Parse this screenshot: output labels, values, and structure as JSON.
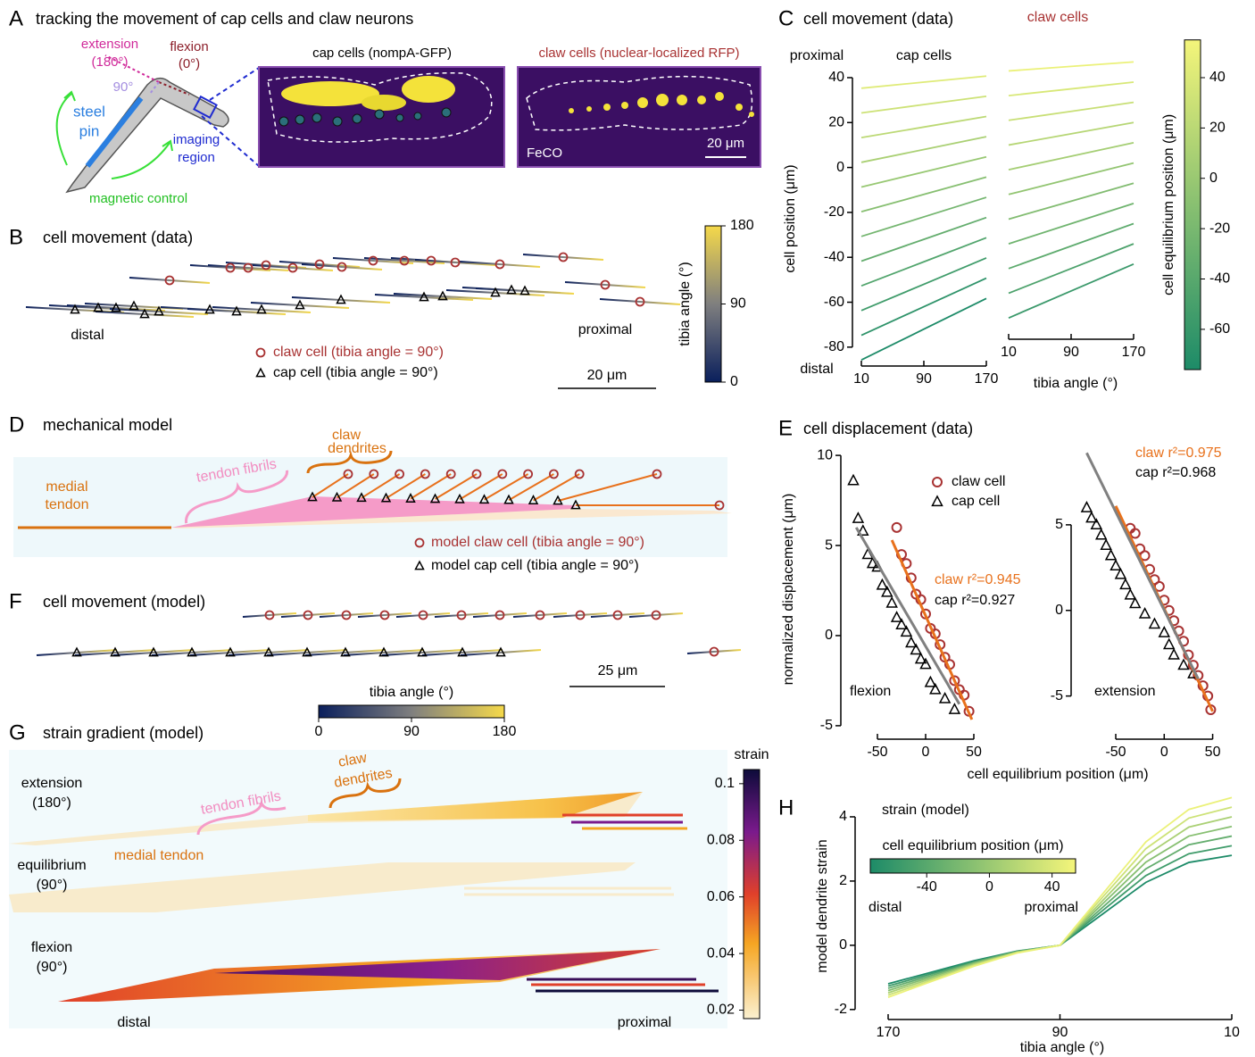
{
  "panels": {
    "A": {
      "letter": "A",
      "title": "tracking the movement of cap cells and claw neurons",
      "extension": "extension",
      "extension_angle": "(180°)",
      "flexion": "flexion",
      "flexion_angle": "(0°)",
      "right_angle": "90°",
      "steel": "steel",
      "pin": "pin",
      "imaging": "imaging",
      "region": "region",
      "magnetic_control": "magnetic control",
      "cap_image": "cap cells (nompA-GFP)",
      "claw_image": "claw cells (nuclear-localized RFP)",
      "feco": "FeCO",
      "scale": "20 μm"
    },
    "B": {
      "letter": "B",
      "title": "cell movement (data)",
      "distal": "distal",
      "proximal": "proximal",
      "claw_legend": "claw cell (tibia angle = 90°)",
      "cap_legend": "cap cell (tibia angle = 90°)",
      "scale": "20 μm",
      "colorbar": {
        "label": "tibia angle (°)",
        "range": [
          0,
          180
        ],
        "ticks": [
          0,
          90,
          180
        ]
      }
    },
    "C": {
      "letter": "C",
      "title": "cell movement (data)",
      "colorbar": {
        "label": "cell equilibrium position (μm)",
        "range": [
          -76,
          55
        ],
        "ticks": [
          -60,
          -40,
          -20,
          0,
          20,
          40
        ]
      }
    },
    "D": {
      "letter": "D",
      "title": "mechanical model",
      "medial": "medial",
      "tendon": "tendon",
      "fibrils": "tendon fibrils",
      "claw": "claw",
      "dendrites": "dendrites",
      "claw_legend": "model claw cell (tibia angle = 90°)",
      "cap_legend": "model cap cell (tibia angle = 90°)"
    },
    "E": {
      "letter": "E",
      "title": "cell displacement (data)",
      "xlabel": "cell equilibrium position (μm)"
    },
    "F": {
      "letter": "F",
      "title": "cell movement (model)",
      "scale": "25 μm",
      "colorbar": {
        "label": "tibia angle (°)",
        "range": [
          0,
          180
        ],
        "ticks": [
          0,
          90,
          180
        ]
      }
    },
    "G": {
      "letter": "G",
      "title": "strain gradient (model)",
      "extension": "extension",
      "extension_angle": "(180°)",
      "equilibrium": "equilibrium",
      "equilibrium_angle": "(90°)",
      "flexion": "flexion",
      "flexion_angle": "(90°)",
      "fibrils": "tendon fibrils",
      "claw": "claw",
      "dendrites": "dendrites",
      "medial_tendon": "medial tendon",
      "distal": "distal",
      "proximal": "proximal",
      "colorbar": {
        "label": "strain",
        "range": [
          0.017,
          0.105
        ],
        "ticks": [
          0.02,
          0.04,
          0.06,
          0.08,
          0.1
        ]
      }
    },
    "H": {
      "letter": "H"
    }
  },
  "chart_data": [
    {
      "type": "line",
      "subtitle": "cap cells",
      "ylabel": "cell position (μm)",
      "annotations": [
        "proximal",
        "distal"
      ],
      "x": [
        10,
        90,
        170
      ],
      "xlim": [
        10,
        170
      ],
      "xticks": [
        10,
        90,
        170
      ],
      "ylim": [
        -90,
        45
      ],
      "yticks": [
        -80,
        -60,
        -40,
        -20,
        0,
        20,
        40
      ],
      "series": [
        {
          "color": "#dfeb78",
          "values": [
            35.3,
            38,
            40.7
          ]
        },
        {
          "color": "#cde277",
          "values": [
            24.3,
            28,
            31.7
          ]
        },
        {
          "color": "#bcd975",
          "values": [
            13.3,
            18,
            22.7
          ]
        },
        {
          "color": "#aad074",
          "values": [
            2.3,
            8,
            13.7
          ]
        },
        {
          "color": "#98c873",
          "values": [
            -8.7,
            -2,
            4.7
          ]
        },
        {
          "color": "#87bf71",
          "values": [
            -19.7,
            -12,
            -4.3
          ]
        },
        {
          "color": "#75b670",
          "values": [
            -30.7,
            -22,
            -13.3
          ]
        },
        {
          "color": "#64ad6e",
          "values": [
            -41.7,
            -32,
            -22.3
          ]
        },
        {
          "color": "#52a56d",
          "values": [
            -52.7,
            -42,
            -31.3
          ]
        },
        {
          "color": "#409c6b",
          "values": [
            -63.7,
            -52,
            -40.3
          ]
        },
        {
          "color": "#2f936a",
          "values": [
            -74.7,
            -62,
            -49.3
          ]
        },
        {
          "color": "#1d8b68",
          "values": [
            -85.7,
            -72,
            -58.3
          ]
        }
      ]
    },
    {
      "type": "line",
      "subtitle": "claw cells",
      "xlabel": "tibia angle (°)",
      "x": [
        10,
        90,
        170
      ],
      "xlim": [
        10,
        170
      ],
      "xticks": [
        10,
        90,
        170
      ],
      "ylim": [
        -90,
        45
      ],
      "series": [
        {
          "color": "#ebf179",
          "values": [
            43,
            45,
            47
          ]
        },
        {
          "color": "#d8e878",
          "values": [
            32,
            35,
            38
          ]
        },
        {
          "color": "#c8df76",
          "values": [
            21,
            25,
            29
          ]
        },
        {
          "color": "#b6d675",
          "values": [
            10,
            15,
            20
          ]
        },
        {
          "color": "#a5ce74",
          "values": [
            -1,
            5,
            11
          ]
        },
        {
          "color": "#93c572",
          "values": [
            -12,
            -5,
            2
          ]
        },
        {
          "color": "#82bc71",
          "values": [
            -23,
            -15,
            -7
          ]
        },
        {
          "color": "#70b46f",
          "values": [
            -34,
            -25,
            -16
          ]
        },
        {
          "color": "#5eab6e",
          "values": [
            -45,
            -35,
            -25
          ]
        },
        {
          "color": "#4da26c",
          "values": [
            -56,
            -45,
            -34
          ]
        },
        {
          "color": "#3b996b",
          "values": [
            -67,
            -55,
            -43
          ]
        }
      ]
    },
    {
      "type": "scatter",
      "title": "flexion",
      "ylabel": "normalized displacement (μm)",
      "xlim": [
        -80,
        55
      ],
      "xticks": [
        -50,
        0,
        50
      ],
      "ylim": [
        -5.5,
        10.5
      ],
      "yticks": [
        -5,
        0,
        5,
        10
      ],
      "series": [
        {
          "name": "claw cell",
          "color": "#a83232",
          "marker": "circle",
          "x": [
            -30,
            -25,
            -20,
            -15,
            -10,
            -5,
            0,
            5,
            10,
            15,
            20,
            25,
            30,
            35,
            40,
            45
          ],
          "values": [
            6.0,
            4.5,
            4.0,
            3.2,
            2.3,
            2.0,
            1.2,
            0.4,
            0.1,
            -0.5,
            -1.2,
            -1.6,
            -2.5,
            -3.0,
            -3.3,
            -4.2
          ]
        },
        {
          "name": "cap cell",
          "color": "#000000",
          "marker": "triangle",
          "x": [
            -75,
            -70,
            -65,
            -60,
            -55,
            -50,
            -45,
            -40,
            -35,
            -30,
            -25,
            -20,
            -15,
            -10,
            -5,
            0,
            5,
            10,
            20,
            30
          ],
          "values": [
            8.6,
            6.5,
            5.8,
            4.5,
            4.0,
            3.8,
            2.8,
            2.4,
            1.8,
            1.0,
            0.6,
            0.2,
            -0.4,
            -0.8,
            -1.3,
            -1.6,
            -2.6,
            -3.0,
            -3.5,
            -4.1
          ]
        }
      ],
      "fits": [
        {
          "color": "#e8711c",
          "x": [
            -35,
            48
          ],
          "values": [
            5.3,
            -4.66
          ]
        },
        {
          "color": "#808080",
          "x": [
            -72,
            35
          ],
          "values": [
            6.0,
            -3.8
          ]
        }
      ],
      "annotations": [
        {
          "text": "claw r²=0.945",
          "color": "#e8711c"
        },
        {
          "text": "cap r²=0.927",
          "color": "#000000"
        }
      ]
    },
    {
      "type": "scatter",
      "title": "extension",
      "xlim": [
        -85,
        55
      ],
      "xticks": [
        -50,
        0,
        50
      ],
      "ylim": [
        -7,
        10
      ],
      "yticks": [
        -5,
        0,
        5
      ],
      "series": [
        {
          "color": "#a83232",
          "marker": "circle",
          "x": [
            -35,
            -30,
            -25,
            -20,
            -15,
            -10,
            -5,
            0,
            5,
            10,
            15,
            20,
            25,
            30,
            35,
            40,
            45,
            48
          ],
          "values": [
            4.8,
            4.5,
            3.6,
            3.2,
            2.4,
            1.8,
            1.4,
            0.6,
            0.0,
            -0.6,
            -1.2,
            -1.8,
            -2.6,
            -3.2,
            -3.8,
            -4.4,
            -5.0,
            -5.8
          ]
        },
        {
          "color": "#000000",
          "marker": "triangle",
          "x": [
            -80,
            -75,
            -70,
            -65,
            -60,
            -55,
            -50,
            -45,
            -40,
            -35,
            -30,
            -20,
            -10,
            0,
            5,
            10,
            20,
            30
          ],
          "values": [
            6.0,
            5.4,
            5.0,
            4.4,
            3.8,
            3.2,
            2.6,
            2.1,
            1.5,
            0.9,
            0.4,
            -0.2,
            -0.8,
            -1.3,
            -2.0,
            -2.6,
            -3.2,
            -3.7
          ]
        }
      ],
      "fits": [
        {
          "color": "#e8711c",
          "x": [
            -50,
            50
          ],
          "values": [
            6.1,
            -5.9
          ]
        },
        {
          "color": "#808080",
          "x": [
            -80,
            35
          ],
          "values": [
            9.2,
            -4.0
          ]
        }
      ],
      "annotations": [
        {
          "text": "claw r²=0.975",
          "color": "#e8711c"
        },
        {
          "text": "cap r²=0.968",
          "color": "#000000"
        }
      ]
    },
    {
      "type": "line",
      "title": "strain (model)",
      "xlabel": "tibia angle (°)",
      "ylabel": "model dendrite strain",
      "x": [
        170,
        150,
        130,
        110,
        90,
        70,
        50,
        30,
        10
      ],
      "xlim": [
        170,
        10
      ],
      "xticks": [
        170,
        90,
        10
      ],
      "ylim": [
        -2.2,
        5
      ],
      "yticks": [
        -2,
        0,
        2,
        4
      ],
      "colorbar": {
        "label": "cell equilibrium position (μm)",
        "range": [
          -76,
          55
        ],
        "ticks": [
          -40,
          0,
          40
        ]
      },
      "annotations": [
        "distal",
        "proximal"
      ],
      "series": [
        {
          "color": "#1d8b68",
          "values": [
            -1.2,
            -0.84,
            -0.48,
            -0.18,
            0,
            0.98,
            1.96,
            2.58,
            2.8
          ]
        },
        {
          "color": "#409c6b",
          "values": [
            -1.27,
            -0.89,
            -0.51,
            -0.19,
            0,
            1.09,
            2.17,
            2.85,
            3.1
          ]
        },
        {
          "color": "#64ad6e",
          "values": [
            -1.34,
            -0.94,
            -0.54,
            -0.2,
            0,
            1.19,
            2.38,
            3.13,
            3.4
          ]
        },
        {
          "color": "#87bf71",
          "values": [
            -1.41,
            -0.99,
            -0.56,
            -0.21,
            0,
            1.3,
            2.59,
            3.4,
            3.7
          ]
        },
        {
          "color": "#aad074",
          "values": [
            -1.48,
            -1.04,
            -0.59,
            -0.22,
            0,
            1.4,
            2.8,
            3.68,
            4.0
          ]
        },
        {
          "color": "#cde277",
          "values": [
            -1.55,
            -1.09,
            -0.62,
            -0.23,
            0,
            1.51,
            3.01,
            3.96,
            4.3
          ]
        },
        {
          "color": "#ebf179",
          "values": [
            -1.62,
            -1.13,
            -0.65,
            -0.24,
            0,
            1.61,
            3.22,
            4.23,
            4.6
          ]
        }
      ]
    }
  ]
}
